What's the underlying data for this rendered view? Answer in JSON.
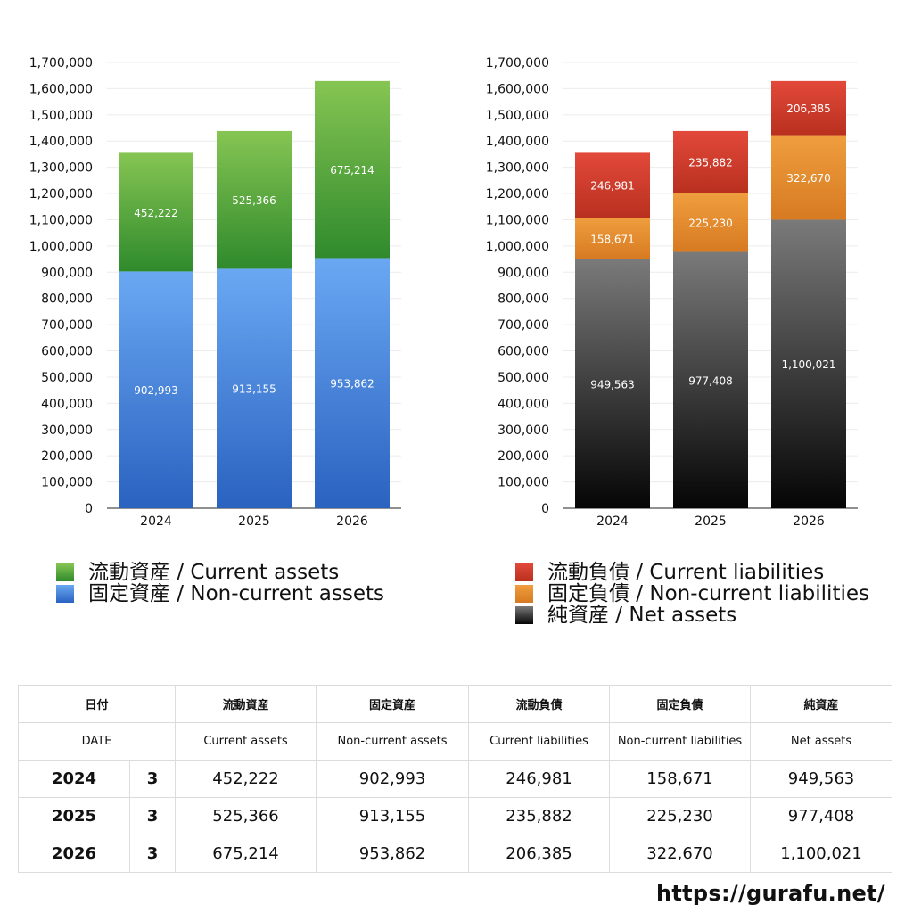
{
  "chart_data": [
    {
      "type": "bar",
      "stacked": true,
      "categories": [
        "2024",
        "2025",
        "2026"
      ],
      "ylim": [
        0,
        1700000
      ],
      "yticks": [
        "0",
        "100,000",
        "200,000",
        "300,000",
        "400,000",
        "500,000",
        "600,000",
        "700,000",
        "800,000",
        "900,000",
        "1,000,000",
        "1,100,000",
        "1,200,000",
        "1,300,000",
        "1,400,000",
        "1,500,000",
        "1,600,000",
        "1,700,000"
      ],
      "grid": true,
      "series": [
        {
          "name": "固定資産 / Non-current assets",
          "values": [
            902993,
            913155,
            953862
          ],
          "labels": [
            "902,993",
            "913,155",
            "953,862"
          ],
          "color_top": "#6aa8f3",
          "color_bottom": "#2a62c0"
        },
        {
          "name": "流動資産 / Current assets",
          "values": [
            452222,
            525366,
            675214
          ],
          "labels": [
            "452,222",
            "525,366",
            "675,214"
          ],
          "color_top": "#86c553",
          "color_bottom": "#2f8a2c"
        }
      ]
    },
    {
      "type": "bar",
      "stacked": true,
      "categories": [
        "2024",
        "2025",
        "2026"
      ],
      "ylim": [
        0,
        1700000
      ],
      "yticks": [
        "0",
        "100,000",
        "200,000",
        "300,000",
        "400,000",
        "500,000",
        "600,000",
        "700,000",
        "800,000",
        "900,000",
        "1,000,000",
        "1,100,000",
        "1,200,000",
        "1,300,000",
        "1,400,000",
        "1,500,000",
        "1,600,000",
        "1,700,000"
      ],
      "grid": true,
      "series": [
        {
          "name": "純資産 / Net assets",
          "values": [
            949563,
            977408,
            1100021
          ],
          "labels": [
            "949,563",
            "977,408",
            "1,100,021"
          ],
          "color_top": "#7a7a7a",
          "color_bottom": "#050505"
        },
        {
          "name": "固定負債 / Non-current liabilities",
          "values": [
            158671,
            225230,
            322670
          ],
          "labels": [
            "158,671",
            "225,230",
            "322,670"
          ],
          "color_top": "#ef9e3e",
          "color_bottom": "#d77a22"
        },
        {
          "name": "流動負債 / Current liabilities",
          "values": [
            246981,
            235882,
            206385
          ],
          "labels": [
            "246,981",
            "235,882",
            "206,385"
          ],
          "color_top": "#e2493a",
          "color_bottom": "#b9301f"
        }
      ]
    }
  ],
  "legend_left": [
    {
      "label": "流動資産 / Current assets",
      "color_top": "#86c553",
      "color_bottom": "#2f8a2c"
    },
    {
      "label": "固定資産 / Non-current assets",
      "color_top": "#6aa8f3",
      "color_bottom": "#2a62c0"
    }
  ],
  "legend_right": [
    {
      "label": "流動負債 / Current liabilities",
      "color_top": "#e2493a",
      "color_bottom": "#b9301f"
    },
    {
      "label": "固定負債 / Non-current liabilities",
      "color_top": "#ef9e3e",
      "color_bottom": "#d77a22"
    },
    {
      "label": "純資産 / Net assets",
      "color_top": "#7a7a7a",
      "color_bottom": "#050505"
    }
  ],
  "table": {
    "header_jp": [
      "日付",
      "流動資産",
      "固定資産",
      "流動負債",
      "固定負債",
      "純資産"
    ],
    "header_en": [
      "DATE",
      "Current assets",
      "Non-current assets",
      "Current liabilities",
      "Non-current liabilities",
      "Net assets"
    ],
    "rows": [
      {
        "year": "2024",
        "count": "3",
        "values": [
          "452,222",
          "902,993",
          "246,981",
          "158,671",
          "949,563"
        ]
      },
      {
        "year": "2025",
        "count": "3",
        "values": [
          "525,366",
          "913,155",
          "235,882",
          "225,230",
          "977,408"
        ]
      },
      {
        "year": "2026",
        "count": "3",
        "values": [
          "675,214",
          "953,862",
          "206,385",
          "322,670",
          "1,100,021"
        ]
      }
    ]
  },
  "url": "https://gurafu.net/"
}
